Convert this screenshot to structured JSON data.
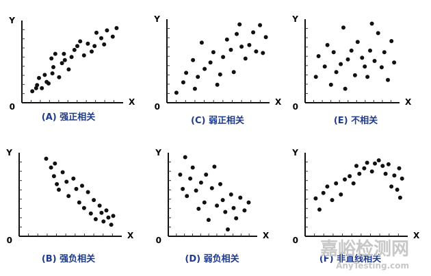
{
  "watermark": {
    "main": "嘉峪检测网",
    "sub": "AnyTesting.com"
  },
  "chart_data": [
    {
      "type": "scatter",
      "title": "(A) 强正相关",
      "x_axis_label": "X",
      "y_axis_label": "Y",
      "origin_label": "0",
      "xlim": [
        0,
        10
      ],
      "ylim": [
        0,
        10
      ],
      "points": [
        [
          0.8,
          1.2
        ],
        [
          1.2,
          1.6
        ],
        [
          1.3,
          2.0
        ],
        [
          1.8,
          1.6
        ],
        [
          1.5,
          2.9
        ],
        [
          2.3,
          2.4
        ],
        [
          2.5,
          2.2
        ],
        [
          2.1,
          3.3
        ],
        [
          2.9,
          3.5
        ],
        [
          3.0,
          4.3
        ],
        [
          3.2,
          6.0
        ],
        [
          2.8,
          5.4
        ],
        [
          3.6,
          3.0
        ],
        [
          3.9,
          4.8
        ],
        [
          4.1,
          6.0
        ],
        [
          4.2,
          5.2
        ],
        [
          4.6,
          4.0
        ],
        [
          4.9,
          5.6
        ],
        [
          5.2,
          6.5
        ],
        [
          5.5,
          7.0
        ],
        [
          5.8,
          7.6
        ],
        [
          6.2,
          5.8
        ],
        [
          6.6,
          7.3
        ],
        [
          7.0,
          6.3
        ],
        [
          7.3,
          7.0
        ],
        [
          7.5,
          8.7
        ],
        [
          8.0,
          8.0
        ],
        [
          8.3,
          7.2
        ],
        [
          8.6,
          9.0
        ],
        [
          9.2,
          8.2
        ],
        [
          9.6,
          9.3
        ]
      ]
    },
    {
      "type": "scatter",
      "title": "(C) 弱正相关",
      "x_axis_label": "X",
      "y_axis_label": "Y",
      "origin_label": "0",
      "xlim": [
        0,
        10
      ],
      "ylim": [
        0,
        10
      ],
      "points": [
        [
          0.7,
          1.0
        ],
        [
          1.4,
          2.3
        ],
        [
          1.7,
          3.5
        ],
        [
          2.4,
          5.1
        ],
        [
          2.6,
          1.5
        ],
        [
          2.9,
          3.0
        ],
        [
          3.3,
          7.3
        ],
        [
          3.6,
          4.0
        ],
        [
          4.2,
          4.8
        ],
        [
          4.5,
          6.1
        ],
        [
          4.9,
          2.0
        ],
        [
          5.2,
          3.3
        ],
        [
          5.5,
          5.5
        ],
        [
          5.9,
          7.7
        ],
        [
          6.3,
          6.4
        ],
        [
          6.6,
          3.6
        ],
        [
          6.9,
          8.4
        ],
        [
          7.2,
          9.6
        ],
        [
          7.4,
          6.8
        ],
        [
          7.8,
          5.3
        ],
        [
          8.2,
          7.0
        ],
        [
          8.6,
          8.6
        ],
        [
          8.9,
          6.2
        ],
        [
          9.3,
          9.5
        ],
        [
          9.6,
          6.0
        ],
        [
          9.9,
          8.0
        ]
      ]
    },
    {
      "type": "scatter",
      "title": "(E) 不相关",
      "x_axis_label": "X",
      "y_axis_label": "Y",
      "origin_label": "0",
      "xlim": [
        0,
        10
      ],
      "ylim": [
        0,
        10
      ],
      "points": [
        [
          0.9,
          3.0
        ],
        [
          1.2,
          5.6
        ],
        [
          1.9,
          4.3
        ],
        [
          2.2,
          7.0
        ],
        [
          2.6,
          2.0
        ],
        [
          2.9,
          6.1
        ],
        [
          3.2,
          3.6
        ],
        [
          3.7,
          4.6
        ],
        [
          4.0,
          9.2
        ],
        [
          4.2,
          1.5
        ],
        [
          4.5,
          5.2
        ],
        [
          4.9,
          6.3
        ],
        [
          5.3,
          3.2
        ],
        [
          5.6,
          7.4
        ],
        [
          6.1,
          5.4
        ],
        [
          6.4,
          4.3
        ],
        [
          6.7,
          3.0
        ],
        [
          7.0,
          6.3
        ],
        [
          7.2,
          9.7
        ],
        [
          7.5,
          5.0
        ],
        [
          7.9,
          8.5
        ],
        [
          8.3,
          4.2
        ],
        [
          8.6,
          6.1
        ],
        [
          9.0,
          2.6
        ],
        [
          9.4,
          7.5
        ],
        [
          9.7,
          4.8
        ]
      ]
    },
    {
      "type": "scatter",
      "title": "(B) 强负相关",
      "x_axis_label": "X",
      "y_axis_label": "Y",
      "origin_label": "0",
      "xlim": [
        0,
        10
      ],
      "ylim": [
        0,
        10
      ],
      "points": [
        [
          2.5,
          9.5
        ],
        [
          3.0,
          8.4
        ],
        [
          3.4,
          8.9
        ],
        [
          3.3,
          7.3
        ],
        [
          3.6,
          6.3
        ],
        [
          3.8,
          5.6
        ],
        [
          4.2,
          7.8
        ],
        [
          4.6,
          6.6
        ],
        [
          4.8,
          4.8
        ],
        [
          5.3,
          7.0
        ],
        [
          5.6,
          5.7
        ],
        [
          5.9,
          4.0
        ],
        [
          6.2,
          6.1
        ],
        [
          6.4,
          3.3
        ],
        [
          6.8,
          5.3
        ],
        [
          7.1,
          2.6
        ],
        [
          7.4,
          4.3
        ],
        [
          7.6,
          1.9
        ],
        [
          8.0,
          3.6
        ],
        [
          8.2,
          2.7
        ],
        [
          8.4,
          1.6
        ],
        [
          8.7,
          3.0
        ],
        [
          8.9,
          2.1
        ],
        [
          9.2,
          1.2
        ],
        [
          9.4,
          2.3
        ]
      ]
    },
    {
      "type": "scatter",
      "title": "(D) 弱负相关",
      "x_axis_label": "X",
      "y_axis_label": "Y",
      "origin_label": "0",
      "xlim": [
        0,
        10
      ],
      "ylim": [
        0,
        10
      ],
      "points": [
        [
          1.1,
          7.5
        ],
        [
          1.4,
          5.7
        ],
        [
          1.7,
          9.7
        ],
        [
          1.9,
          4.8
        ],
        [
          2.3,
          7.0
        ],
        [
          2.6,
          8.4
        ],
        [
          3.0,
          5.5
        ],
        [
          3.3,
          3.2
        ],
        [
          3.6,
          6.5
        ],
        [
          4.0,
          4.0
        ],
        [
          4.2,
          7.5
        ],
        [
          4.5,
          1.8
        ],
        [
          4.9,
          5.8
        ],
        [
          5.2,
          8.5
        ],
        [
          5.5,
          3.6
        ],
        [
          5.9,
          6.3
        ],
        [
          6.2,
          4.3
        ],
        [
          6.5,
          2.8
        ],
        [
          6.8,
          0.6
        ],
        [
          7.2,
          5.0
        ],
        [
          7.5,
          3.3
        ],
        [
          7.8,
          2.0
        ],
        [
          8.3,
          4.6
        ],
        [
          8.8,
          3.0
        ],
        [
          9.3,
          4.0
        ]
      ]
    },
    {
      "type": "scatter",
      "title": "(F) 非直线相关",
      "x_axis_label": "X",
      "y_axis_label": "Y",
      "origin_label": "0",
      "xlim": [
        0,
        10
      ],
      "ylim": [
        0,
        10
      ],
      "points": [
        [
          0.8,
          4.5
        ],
        [
          1.2,
          3.1
        ],
        [
          1.6,
          5.2
        ],
        [
          2.0,
          6.0
        ],
        [
          2.5,
          4.3
        ],
        [
          2.9,
          6.4
        ],
        [
          3.4,
          5.0
        ],
        [
          3.8,
          6.9
        ],
        [
          4.3,
          7.3
        ],
        [
          4.7,
          6.4
        ],
        [
          5.0,
          8.6
        ],
        [
          5.3,
          7.6
        ],
        [
          5.8,
          8.3
        ],
        [
          6.1,
          9.0
        ],
        [
          6.6,
          7.9
        ],
        [
          6.9,
          8.9
        ],
        [
          7.3,
          9.3
        ],
        [
          7.7,
          8.6
        ],
        [
          8.0,
          7.6
        ],
        [
          8.3,
          8.8
        ],
        [
          8.6,
          6.0
        ],
        [
          8.9,
          7.4
        ],
        [
          9.2,
          5.6
        ],
        [
          9.4,
          8.3
        ],
        [
          9.5,
          4.6
        ],
        [
          9.7,
          7.0
        ]
      ]
    }
  ]
}
